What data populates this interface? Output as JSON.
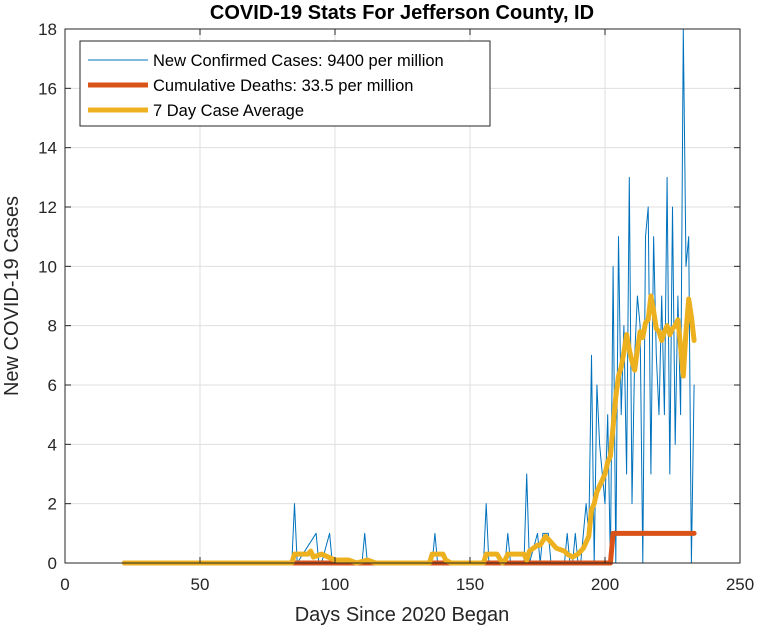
{
  "chart_data": {
    "type": "line",
    "title": "COVID-19 Stats For Jefferson County, ID",
    "xlabel": "Days Since 2020 Began",
    "ylabel": "New COVID-19 Cases",
    "xlim": [
      0,
      250
    ],
    "ylim": [
      0,
      18
    ],
    "xticks": [
      0,
      50,
      100,
      150,
      200,
      250
    ],
    "yticks": [
      0,
      2,
      4,
      6,
      8,
      10,
      12,
      14,
      16,
      18
    ],
    "grid": true,
    "legend_position": "top-left",
    "series": [
      {
        "name": "New Confirmed Cases: 9400 per million",
        "color": "#0072BD",
        "style": "thin",
        "x": [
          22,
          84,
          85,
          86,
          93,
          94,
          95,
          98,
          99,
          100,
          110,
          111,
          112,
          136,
          137,
          138,
          155,
          156,
          157,
          163,
          164,
          165,
          170,
          171,
          172,
          175,
          176,
          177,
          178,
          179,
          180,
          181,
          185,
          186,
          187,
          188,
          189,
          190,
          191,
          192,
          193,
          194,
          195,
          196,
          197,
          198,
          199,
          200,
          201,
          202,
          203,
          204,
          205,
          206,
          207,
          208,
          209,
          210,
          211,
          212,
          213,
          214,
          215,
          216,
          217,
          218,
          219,
          220,
          221,
          222,
          223,
          224,
          225,
          226,
          227,
          228,
          229,
          230,
          231,
          232,
          233
        ],
        "y": [
          0,
          0,
          2,
          0,
          1,
          0,
          0,
          1,
          0,
          0,
          0,
          1,
          0,
          0,
          1,
          0,
          0,
          2,
          0,
          0,
          1,
          0,
          0,
          3,
          0,
          1,
          0,
          1,
          1,
          1,
          0,
          0,
          0,
          1,
          0,
          0,
          1,
          0,
          0,
          1,
          2,
          1,
          7,
          0,
          6,
          4,
          3,
          2,
          5,
          0,
          10,
          0,
          11,
          5,
          8,
          3,
          13,
          2,
          7,
          9,
          8,
          0,
          11,
          12,
          3,
          11,
          7,
          5,
          9,
          5,
          13,
          3,
          12,
          4,
          9,
          5,
          18,
          10,
          11,
          0,
          6
        ]
      },
      {
        "name": "Cumulative Deaths: 33.5 per million",
        "color": "#D95319",
        "style": "thick",
        "x": [
          22,
          202,
          203,
          204,
          233
        ],
        "y": [
          0,
          0,
          1,
          1,
          1
        ]
      },
      {
        "name": "7 Day Case Average",
        "color": "#EDB120",
        "style": "thick",
        "x": [
          22,
          84,
          85,
          90,
          91,
          92,
          95,
          100,
          105,
          108,
          112,
          115,
          135,
          136,
          140,
          141,
          143,
          155,
          156,
          160,
          162,
          163,
          164,
          170,
          171,
          172,
          175,
          176,
          178,
          180,
          182,
          185,
          186,
          188,
          190,
          192,
          193,
          194,
          195,
          196,
          197,
          198,
          199,
          200,
          201,
          202,
          203,
          204,
          205,
          206,
          207,
          208,
          209,
          210,
          211,
          212,
          213,
          214,
          215,
          216,
          217,
          218,
          219,
          220,
          221,
          222,
          223,
          224,
          225,
          226,
          227,
          228,
          229,
          230,
          231,
          232,
          233
        ],
        "y": [
          0,
          0,
          0.3,
          0.3,
          0.4,
          0.2,
          0.3,
          0.1,
          0.1,
          0,
          0.1,
          0,
          0,
          0.3,
          0.3,
          0.1,
          0,
          0,
          0.3,
          0.3,
          0,
          0.1,
          0.3,
          0.3,
          0.1,
          0.4,
          0.6,
          0.6,
          0.9,
          0.7,
          0.5,
          0.4,
          0.3,
          0.2,
          0.3,
          0.5,
          0.7,
          0.9,
          1.8,
          2,
          2.4,
          2.6,
          2.8,
          3,
          3.4,
          3.6,
          4.6,
          5.6,
          6.3,
          6.6,
          7.1,
          7.7,
          7.2,
          6.8,
          6.5,
          7.2,
          7.8,
          7.6,
          8.1,
          8.2,
          9,
          8.5,
          7.9,
          7.8,
          7.5,
          7.8,
          8,
          7.7,
          7.9,
          8,
          8.2,
          7.3,
          6.3,
          7.8,
          8.9,
          8.3,
          7.5
        ]
      }
    ]
  }
}
